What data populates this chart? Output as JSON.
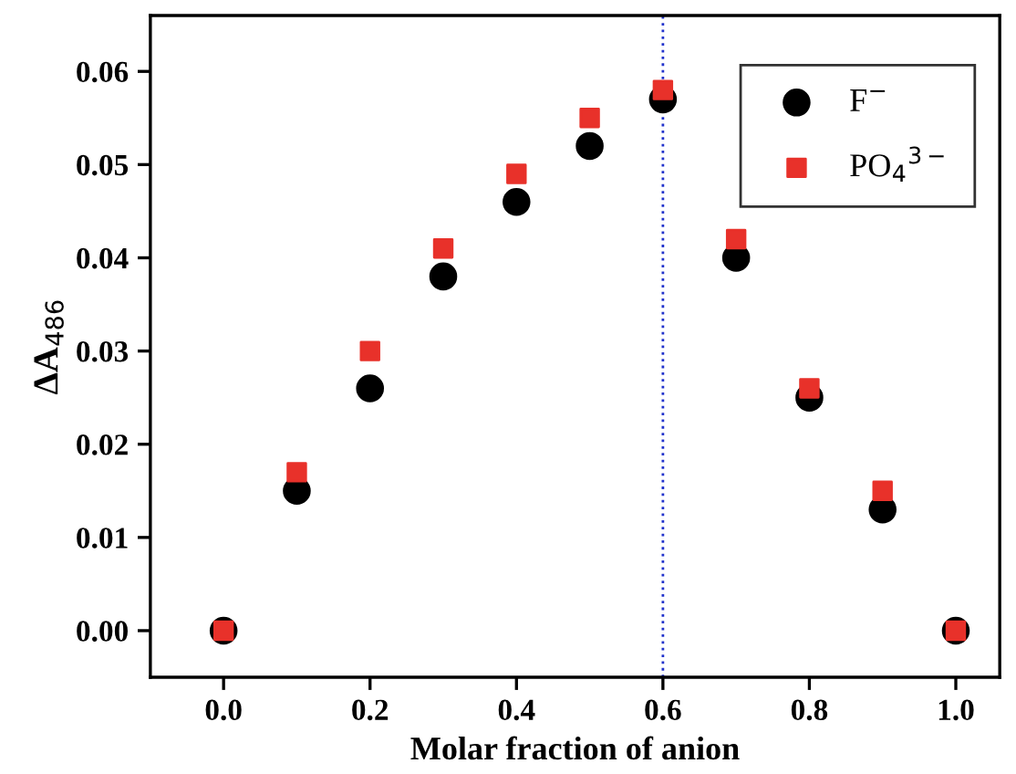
{
  "chart_data": {
    "type": "scatter",
    "xlabel": "Molar fraction of anion",
    "ylabel": "ΔA$_{486}$",
    "x": [
      0.0,
      0.1,
      0.2,
      0.3,
      0.4,
      0.5,
      0.6,
      0.7,
      0.8,
      0.9,
      1.0
    ],
    "series": [
      {
        "name": "F$^{−}$",
        "color": "#000000",
        "marker": "circle",
        "values": [
          0.0,
          0.015,
          0.026,
          0.038,
          0.046,
          0.052,
          0.057,
          0.04,
          0.025,
          0.013,
          0.0
        ]
      },
      {
        "name": "PO$_{4}$$^{3−}$",
        "color": "#e8312a",
        "marker": "square",
        "values": [
          0.0,
          0.017,
          0.03,
          0.041,
          0.049,
          0.055,
          0.058,
          0.042,
          0.026,
          0.015,
          0.0
        ]
      }
    ],
    "xlim": [
      -0.1,
      1.06
    ],
    "ylim": [
      -0.005,
      0.066
    ],
    "xticks": [
      {
        "value": 0.0,
        "label": "0.0"
      },
      {
        "value": 0.2,
        "label": "0.2"
      },
      {
        "value": 0.4,
        "label": "0.4"
      },
      {
        "value": 0.6,
        "label": "0.6"
      },
      {
        "value": 0.8,
        "label": "0.8"
      },
      {
        "value": 1.0,
        "label": "1.0"
      }
    ],
    "yticks": [
      {
        "value": 0.0,
        "label": "0.00"
      },
      {
        "value": 0.01,
        "label": "0.01"
      },
      {
        "value": 0.02,
        "label": "0.02"
      },
      {
        "value": 0.03,
        "label": "0.03"
      },
      {
        "value": 0.04,
        "label": "0.04"
      },
      {
        "value": 0.05,
        "label": "0.05"
      },
      {
        "value": 0.06,
        "label": "0.06"
      }
    ],
    "ref_lines": [
      {
        "axis": "x",
        "value": 0.6,
        "color": "#2233cc",
        "line_style": "dotted"
      }
    ],
    "legend": "top right",
    "grid": false
  }
}
